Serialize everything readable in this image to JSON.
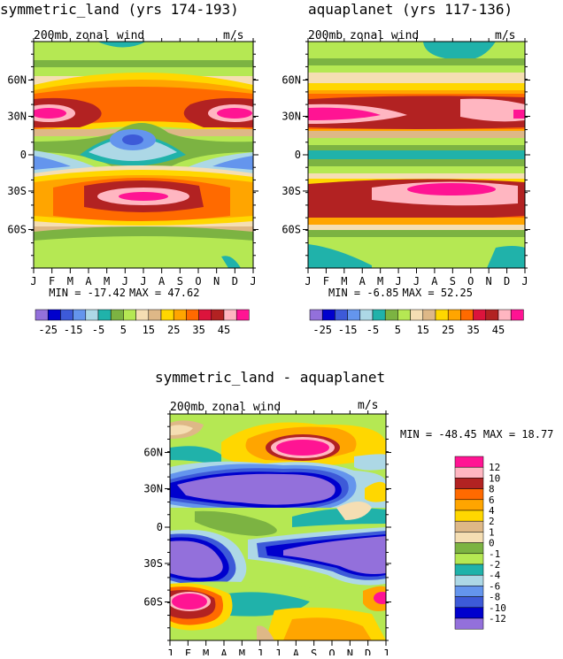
{
  "chart_data": [
    {
      "type": "heatmap",
      "title": "symmetric_land (yrs 174-193)",
      "subtitle": "200mb zonal wind",
      "units": "m/s",
      "x": [
        "J",
        "F",
        "M",
        "A",
        "M",
        "J",
        "J",
        "A",
        "S",
        "O",
        "N",
        "D",
        "J"
      ],
      "y": [
        "60N",
        "30N",
        "0",
        "30S",
        "60S"
      ],
      "min_label": "MIN = -17.42",
      "max_label": "MAX =  47.62",
      "colorbar_labels": [
        "-25",
        "-15",
        "-5",
        "5",
        "15",
        "25",
        "35",
        "45"
      ],
      "colors": [
        "#9370db",
        "#0000cd",
        "#3d5ad8",
        "#6495ed",
        "#add8e6",
        "#20b2aa",
        "#7cb342",
        "#b5e853",
        "#f5deb3",
        "#deb887",
        "#ffd700",
        "#ffa500",
        "#ff6a00",
        "#dc143c",
        "#b22222",
        "#ffb6c1",
        "#ff1493"
      ],
      "field": "zonal-mean 200mb wind vs month and latitude; jets near 30N and 30S, weak/negative equatorial wind mid-year"
    },
    {
      "type": "heatmap",
      "title": "aquaplanet (yrs 117-136)",
      "subtitle": "200mb zonal wind",
      "units": "m/s",
      "x": [
        "J",
        "F",
        "M",
        "A",
        "M",
        "J",
        "J",
        "A",
        "S",
        "O",
        "N",
        "D",
        "J"
      ],
      "y": [
        "60N",
        "30N",
        "0",
        "30S",
        "60S"
      ],
      "min_label": "MIN =  -6.85",
      "max_label": "MAX =  52.25",
      "colorbar_labels": [
        "-25",
        "-15",
        "-5",
        "5",
        "15",
        "25",
        "35",
        "45"
      ],
      "field": "zonal-mean 200mb wind vs month and latitude; strong jets near 30N and 25S"
    },
    {
      "type": "heatmap",
      "title": "symmetric_land - aquaplanet",
      "subtitle": "200mb zonal wind",
      "units": "m/s",
      "x": [
        "J",
        "F",
        "M",
        "A",
        "M",
        "J",
        "J",
        "A",
        "S",
        "O",
        "N",
        "D",
        "J"
      ],
      "y": [
        "60N",
        "30N",
        "0",
        "30S",
        "60S"
      ],
      "minmax_label": "MIN = -48.45 MAX =  18.77",
      "colorbar_labels": [
        "12",
        "10",
        "8",
        "6",
        "4",
        "2",
        "1",
        "0",
        "-1",
        "-2",
        "-4",
        "-6",
        "-8",
        "-10",
        "-12"
      ],
      "field": "difference; large negative region 20N-40N mid-year and 30S-45S, positive near 60N and 60S"
    }
  ]
}
